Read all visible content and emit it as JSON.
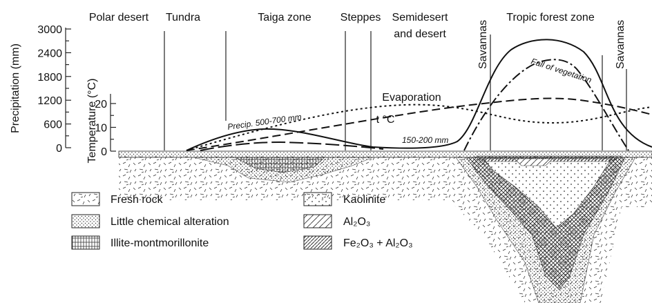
{
  "zones": [
    {
      "label": "Polar desert"
    },
    {
      "label": "Tundra"
    },
    {
      "label": "Taiga zone"
    },
    {
      "label": "Steppes"
    },
    {
      "label": [
        "Semidesert",
        "and desert"
      ]
    },
    {
      "label": "Savannas"
    },
    {
      "label": "Tropic forest zone"
    },
    {
      "label": "Savannas"
    }
  ],
  "precipitation_axis": {
    "label": "Precipitation (mm)",
    "ticks": [
      3000,
      2400,
      1800,
      1200,
      600,
      0
    ]
  },
  "temperature_axis": {
    "label": "Temperature (°C)",
    "ticks": [
      20,
      10,
      0
    ]
  },
  "curve_labels": {
    "evaporation": "Evaporation",
    "temperature": "t °C",
    "precip_taiga": "Precip. 500-700 mm",
    "precip_desert": "150-200 mm",
    "vegetation": "Fall of vegetation"
  },
  "legend": [
    "Fresh rock",
    "Little chemical alteration",
    "Illite-montmorillonite",
    "Kaolinite",
    "Al₂O₃",
    "Fe₂O₃ + Al₂O₃"
  ]
}
